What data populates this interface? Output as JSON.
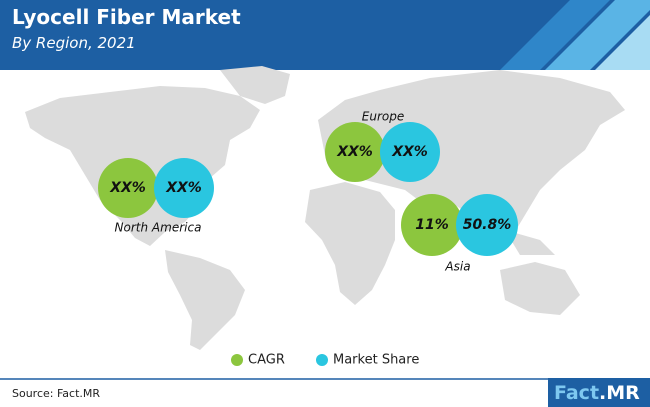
{
  "header": {
    "title": "Lyocell Fiber Market",
    "subtitle": "By Region, 2021"
  },
  "regions": [
    {
      "name": "North America",
      "cagr": "XX%",
      "market_share": "XX%"
    },
    {
      "name": "Europe",
      "cagr": "XX%",
      "market_share": "XX%"
    },
    {
      "name": "Asia",
      "cagr": "11%",
      "market_share": "50.8%"
    }
  ],
  "legend": [
    "CAGR",
    "Market Share"
  ],
  "source": "Source: Fact.MR",
  "logo": {
    "brand": "Fact",
    "suffix": ".MR"
  }
}
